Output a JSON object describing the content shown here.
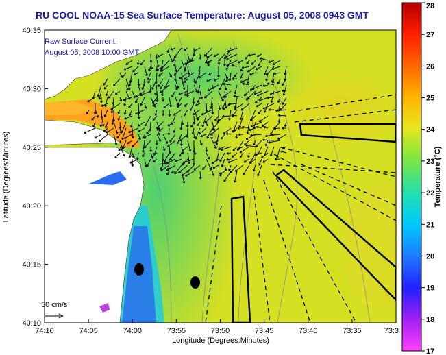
{
  "title": "RU COOL  NOAA-15  Sea Surface Temperature:  August 05, 2008 0943 GMT",
  "current_label_line1": "Raw Surface Current:",
  "current_label_line2": "August 05, 2008 10:00 GMT",
  "scale_label": "50 cm/s",
  "x_axis_label": "Longitude (Degrees:Minutes)",
  "y_axis_label": "Latitude (Degrees:Minutes)",
  "colorbar_label": "Temperature (°C)",
  "x_ticks": [
    "74:10",
    "74:05",
    "74:00",
    "73:55",
    "73:50",
    "73:45",
    "73:40",
    "73:35",
    "73:3"
  ],
  "y_ticks": [
    "40:35",
    "40:30",
    "40:25",
    "40:20",
    "40:15",
    "40:10"
  ],
  "colorbar_ticks": [
    "28",
    "27",
    "26",
    "25",
    "24",
    "23",
    "22",
    "21",
    "20",
    "19",
    "18",
    "17"
  ],
  "colors": {
    "title": "#1a1aa8",
    "land": "#ffffff",
    "warm_sea": "#dbe21e",
    "cool_sea": "#4fd46f"
  }
}
